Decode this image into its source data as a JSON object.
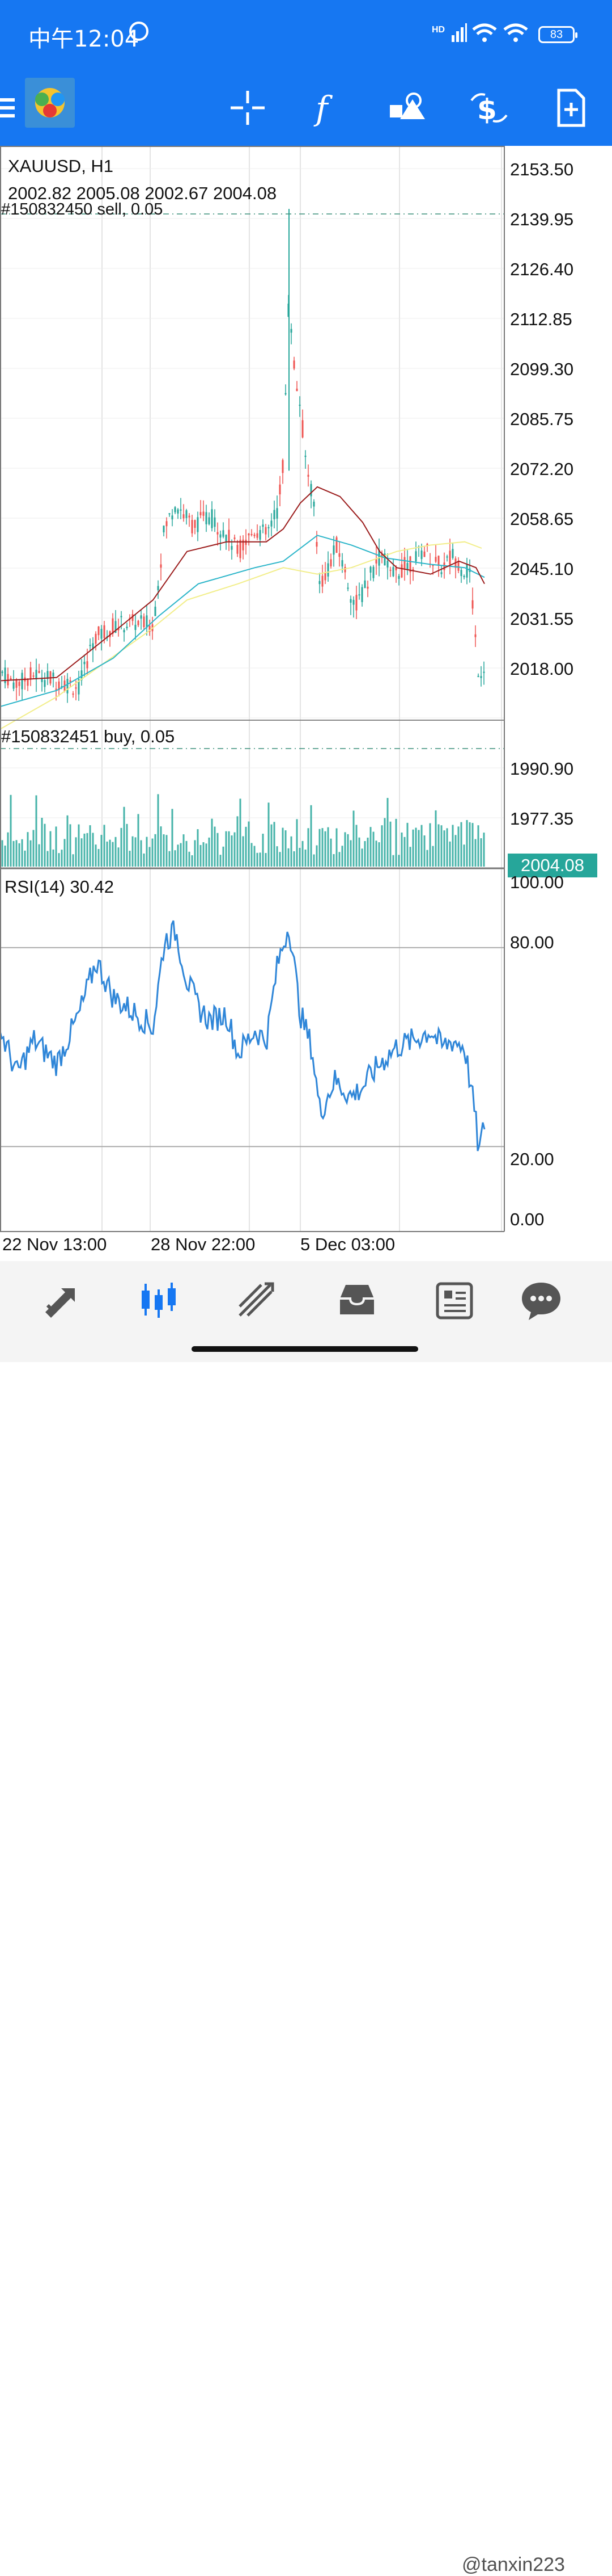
{
  "status_bar": {
    "time": "中午12:04",
    "network": "HD",
    "battery": "83"
  },
  "toolbar": {
    "icons": [
      "menu-icon",
      "crosshair-icon",
      "function-icon",
      "objects-icon",
      "trade-icon",
      "new-order-icon"
    ]
  },
  "chart": {
    "symbol": "XAUUSD, H1",
    "ohlc": "2002.82 2005.08 2002.67 2004.08",
    "sell_order": "#150832450 sell, 0.05",
    "buy_order": "#150832451 buy, 0.05",
    "current_price": "2004.08",
    "price_ticks": [
      "2153.50",
      "2139.95",
      "2126.40",
      "2112.85",
      "2099.30",
      "2085.75",
      "2072.20",
      "2058.65",
      "2045.10",
      "2031.55",
      "2018.00",
      "1990.90",
      "1977.35"
    ],
    "rsi_label": "RSI(14) 30.42",
    "rsi_ticks": [
      "100.00",
      "80.00",
      "20.00",
      "0.00"
    ],
    "time_labels": [
      "22 Nov 13:00",
      "28 Nov 22:00",
      "5 Dec 03:00"
    ],
    "colors": {
      "bull": "#26a69a",
      "bear": "#ef5350",
      "rsi": "#2f86d8",
      "ma_fast": "#9b1c1c",
      "ma_mid": "#2bb5c9",
      "ma_slow": "#f2ee8a"
    }
  },
  "bottom_nav": {
    "items": [
      "quotes-icon",
      "chart-icon",
      "trade-icon",
      "history-icon",
      "news-icon",
      "messages-icon"
    ]
  },
  "watermark": "@tanxin223"
}
